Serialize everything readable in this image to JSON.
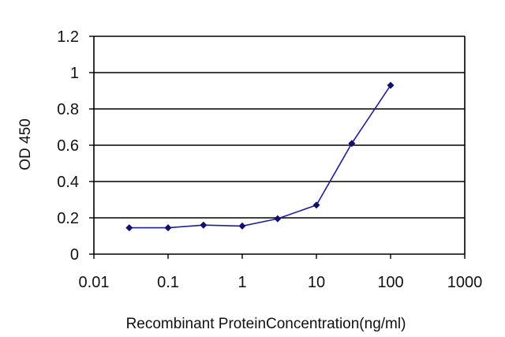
{
  "chart_data": {
    "type": "line",
    "xscale": "log",
    "xlim": [
      0.01,
      1000
    ],
    "ylim": [
      0,
      1.2
    ],
    "xlabel": "Recombinant ProteinConcentration(ng/ml)",
    "ylabel": "OD 450",
    "x_tick_labels": [
      "0.01",
      "0.1",
      "1",
      "10",
      "100",
      "1000"
    ],
    "x_ticks": [
      0.01,
      0.1,
      1,
      10,
      100,
      1000
    ],
    "y_tick_labels": [
      "0",
      "0.2",
      "0.4",
      "0.6",
      "0.8",
      "1",
      "1.2"
    ],
    "y_ticks": [
      0,
      0.2,
      0.4,
      0.6,
      0.8,
      1,
      1.2
    ],
    "grid": "horizontal",
    "series": [
      {
        "x": [
          0.03,
          0.1,
          0.3,
          1,
          3,
          10,
          30,
          100
        ],
        "y": [
          0.145,
          0.145,
          0.16,
          0.155,
          0.195,
          0.27,
          0.61,
          0.93
        ],
        "color": "#1f1f99",
        "marker_color": "#101070"
      }
    ]
  }
}
